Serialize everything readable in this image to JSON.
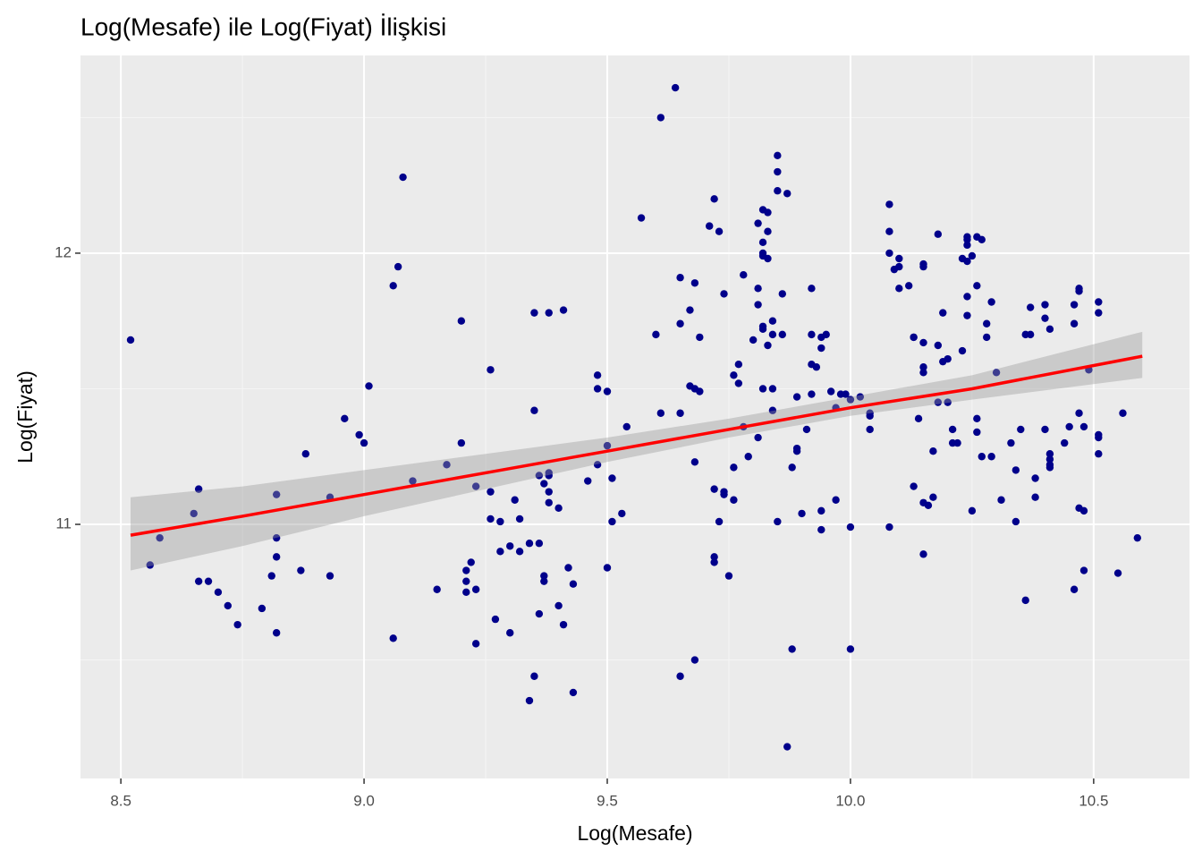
{
  "chart_data": {
    "type": "scatter",
    "title": "Log(Mesafe) ile Log(Fiyat) İlişkisi",
    "x_label": "Log(Mesafe)",
    "y_label": "Log(Fiyat)",
    "color": "#00008b",
    "xlim": [
      8.417,
      10.697
    ],
    "ylim": [
      10.063,
      12.729
    ],
    "xticks": [
      8.5,
      {
        "value": 9.0,
        "label": "9.0"
      },
      9.5,
      {
        "value": 10.0,
        "label": "10.0"
      },
      10.5
    ],
    "yticks": [
      11,
      12
    ],
    "x_minor_grid": [
      8.75,
      9.25,
      9.75,
      10.25
    ],
    "y_minor_grid": [
      10.5,
      11.5,
      12.5
    ],
    "grid": true,
    "x": [
      8.52,
      8.56,
      8.58,
      8.65,
      8.66,
      8.66,
      8.68,
      8.7,
      8.72,
      8.74,
      8.79,
      8.81,
      8.82,
      8.82,
      8.82,
      8.82,
      8.87,
      8.88,
      8.93,
      8.93,
      8.96,
      8.99,
      9.0,
      9.01,
      9.06,
      9.07,
      9.08,
      9.06,
      9.1,
      9.15,
      9.17,
      9.2,
      9.2,
      9.21,
      9.21,
      9.21,
      9.22,
      9.23,
      9.23,
      9.23,
      9.26,
      9.26,
      9.26,
      9.27,
      9.28,
      9.28,
      9.3,
      9.3,
      9.31,
      9.32,
      9.32,
      9.34,
      9.35,
      9.35,
      9.35,
      9.34,
      9.36,
      9.36,
      9.38,
      9.37,
      9.37,
      9.37,
      9.38,
      9.38,
      9.38,
      9.38,
      9.36,
      9.4,
      9.4,
      9.41,
      9.41,
      9.42,
      9.43,
      9.43,
      9.46,
      9.48,
      9.48,
      9.48,
      9.5,
      9.5,
      9.5,
      9.51,
      9.51,
      9.53,
      9.54,
      9.57,
      9.6,
      9.61,
      9.61,
      9.64,
      9.65,
      9.65,
      9.65,
      9.65,
      9.67,
      9.67,
      9.68,
      9.68,
      9.68,
      9.68,
      9.69,
      9.69,
      9.71,
      9.72,
      9.72,
      9.72,
      9.72,
      9.73,
      9.73,
      9.74,
      9.74,
      9.74,
      9.75,
      9.76,
      9.76,
      9.76,
      9.77,
      9.77,
      9.78,
      9.78,
      9.79,
      9.8,
      9.81,
      9.81,
      9.81,
      9.82,
      9.82,
      9.83,
      9.82,
      9.82,
      9.81,
      9.82,
      9.82,
      9.82,
      9.83,
      9.83,
      9.83,
      9.84,
      9.84,
      9.84,
      9.84,
      9.85,
      9.85,
      9.85,
      9.85,
      9.86,
      9.86,
      9.87,
      9.87,
      9.88,
      9.88,
      9.89,
      9.89,
      9.89,
      9.9,
      9.91,
      9.92,
      9.92,
      9.92,
      9.92,
      9.93,
      9.94,
      9.94,
      9.94,
      9.94,
      9.95,
      9.96,
      9.97,
      9.97,
      9.98,
      10.0,
      9.99,
      10.0,
      10.0,
      10.02,
      10.04,
      10.04,
      10.04,
      10.08,
      10.08,
      10.08,
      10.08,
      10.09,
      10.1,
      10.1,
      10.1,
      10.12,
      10.13,
      10.13,
      10.14,
      10.13,
      10.15,
      10.15,
      10.15,
      10.15,
      10.15,
      10.15,
      10.15,
      10.16,
      10.17,
      10.17,
      10.18,
      10.18,
      10.18,
      10.19,
      10.19,
      10.2,
      10.2,
      10.21,
      10.21,
      10.22,
      10.23,
      10.23,
      10.24,
      10.24,
      10.24,
      10.24,
      10.24,
      10.24,
      10.25,
      10.25,
      10.26,
      10.26,
      10.26,
      10.26,
      10.27,
      10.27,
      10.28,
      10.28,
      10.29,
      10.29,
      10.3,
      10.31,
      10.33,
      10.34,
      10.34,
      10.35,
      10.36,
      10.37,
      10.36,
      10.37,
      10.38,
      10.38,
      10.4,
      10.4,
      10.4,
      10.41,
      10.41,
      10.41,
      10.41,
      10.41,
      10.44,
      10.45,
      10.46,
      10.46,
      10.46,
      10.47,
      10.47,
      10.47,
      10.47,
      10.48,
      10.48,
      10.48,
      10.49,
      10.51,
      10.51,
      10.51,
      10.51,
      10.51,
      10.55,
      10.56,
      10.59
    ],
    "y": [
      11.68,
      10.85,
      10.95,
      11.04,
      11.13,
      10.79,
      10.79,
      10.75,
      10.7,
      10.63,
      10.69,
      10.81,
      11.11,
      10.95,
      10.88,
      10.6,
      10.83,
      11.26,
      11.1,
      10.81,
      11.39,
      11.33,
      11.3,
      11.51,
      11.88,
      11.95,
      12.28,
      10.58,
      11.16,
      10.76,
      11.22,
      11.75,
      11.3,
      10.83,
      10.79,
      10.75,
      10.86,
      11.14,
      10.76,
      10.56,
      11.57,
      11.12,
      11.02,
      10.65,
      10.9,
      11.01,
      10.6,
      10.92,
      11.09,
      11.02,
      10.9,
      10.35,
      10.44,
      11.78,
      11.42,
      10.93,
      10.93,
      11.18,
      11.18,
      10.81,
      10.79,
      11.15,
      11.12,
      11.08,
      11.78,
      11.19,
      10.67,
      11.06,
      10.7,
      10.63,
      11.79,
      10.84,
      10.78,
      10.38,
      11.16,
      11.5,
      11.55,
      11.22,
      11.49,
      11.29,
      10.84,
      11.17,
      11.01,
      11.04,
      11.36,
      12.13,
      11.7,
      11.41,
      12.5,
      12.61,
      11.41,
      10.44,
      11.91,
      11.74,
      11.79,
      11.51,
      11.89,
      11.5,
      11.23,
      10.5,
      11.69,
      11.49,
      12.1,
      12.2,
      11.13,
      10.88,
      10.86,
      12.08,
      11.01,
      11.11,
      11.12,
      11.85,
      10.81,
      11.09,
      11.21,
      11.55,
      11.59,
      11.52,
      11.36,
      11.92,
      11.25,
      11.68,
      11.32,
      11.87,
      12.11,
      12.16,
      11.99,
      12.08,
      11.73,
      12.04,
      11.81,
      12.0,
      11.72,
      11.5,
      11.66,
      12.15,
      11.98,
      11.5,
      11.42,
      11.7,
      11.75,
      12.36,
      12.3,
      11.01,
      12.23,
      11.7,
      11.85,
      10.18,
      12.22,
      10.54,
      11.21,
      11.28,
      11.47,
      11.27,
      11.04,
      11.35,
      11.87,
      11.48,
      11.7,
      11.59,
      11.58,
      11.69,
      11.65,
      11.05,
      10.98,
      11.7,
      11.49,
      11.09,
      11.43,
      11.48,
      11.46,
      11.48,
      10.54,
      10.99,
      11.47,
      11.35,
      11.41,
      11.4,
      12.18,
      12.08,
      12.0,
      10.99,
      11.94,
      11.87,
      11.95,
      11.98,
      11.88,
      11.69,
      11.69,
      11.39,
      11.14,
      11.08,
      10.89,
      11.56,
      11.58,
      11.96,
      11.95,
      11.67,
      11.07,
      11.1,
      11.27,
      11.66,
      11.45,
      12.07,
      11.78,
      11.6,
      11.61,
      11.45,
      11.3,
      11.35,
      11.3,
      11.98,
      11.64,
      12.06,
      11.84,
      11.97,
      12.05,
      12.03,
      11.77,
      11.99,
      11.05,
      11.88,
      12.06,
      11.39,
      11.34,
      11.25,
      12.05,
      11.69,
      11.74,
      11.82,
      11.25,
      11.56,
      11.09,
      11.3,
      11.01,
      11.2,
      11.35,
      10.72,
      11.7,
      11.7,
      11.8,
      11.17,
      11.1,
      11.76,
      11.81,
      11.35,
      11.72,
      11.26,
      11.22,
      11.24,
      11.21,
      11.3,
      11.36,
      11.81,
      11.74,
      10.76,
      11.86,
      11.41,
      11.87,
      11.06,
      11.05,
      11.36,
      10.83,
      11.57,
      11.82,
      11.78,
      11.33,
      11.32,
      11.26,
      10.82,
      11.41,
      10.95
    ],
    "fit": {
      "color": "#ff0000",
      "band_color": "#999999",
      "x": [
        8.52,
        8.75,
        9.0,
        9.25,
        9.5,
        9.75,
        10.0,
        10.25,
        10.6
      ],
      "y": [
        10.96,
        11.03,
        11.11,
        11.19,
        11.27,
        11.35,
        11.43,
        11.5,
        11.62
      ],
      "lower": [
        10.83,
        10.92,
        11.03,
        11.13,
        11.23,
        11.32,
        11.4,
        11.46,
        11.54
      ],
      "upper": [
        11.1,
        11.14,
        11.2,
        11.26,
        11.32,
        11.39,
        11.47,
        11.55,
        11.71
      ]
    }
  }
}
